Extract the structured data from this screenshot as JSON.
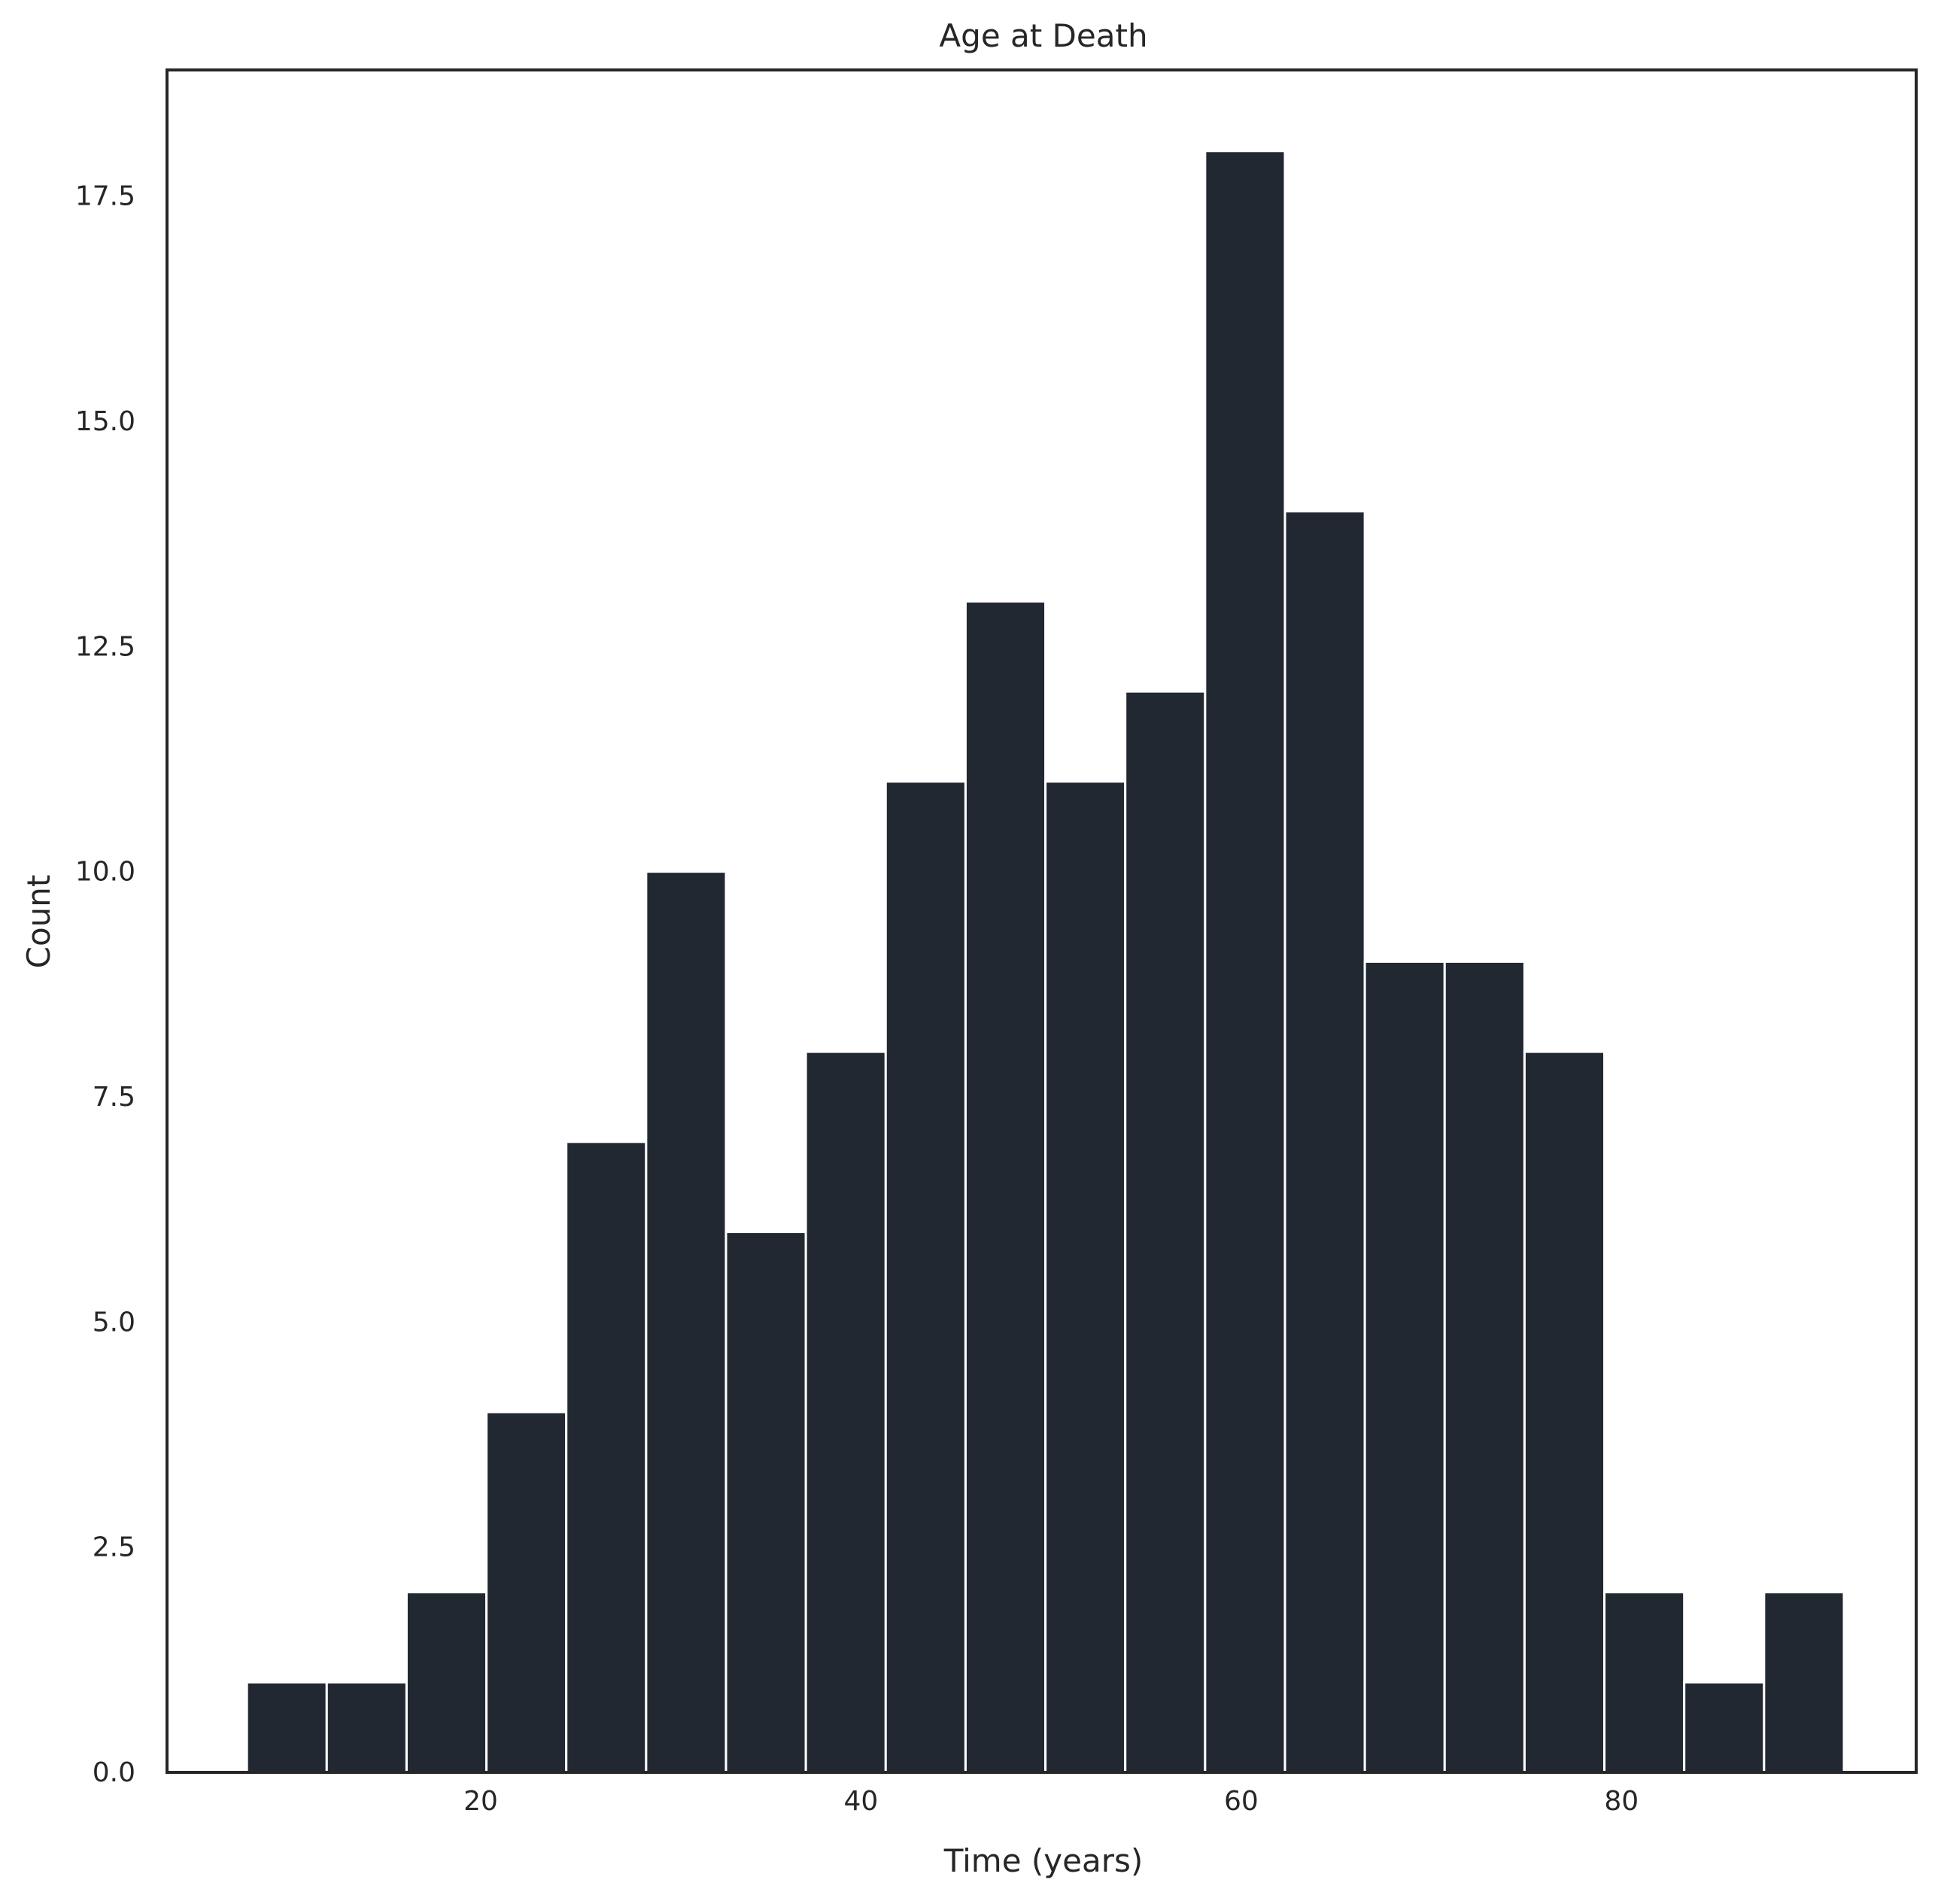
{
  "chart_data": {
    "type": "bar",
    "title": "Age at Death",
    "xlabel": "Time (years)",
    "ylabel": "Count",
    "bar_color": "#222831",
    "grid": false,
    "xlim": [
      3.5,
      95.5
    ],
    "ylim": [
      0,
      18.9
    ],
    "xticks": [
      20,
      40,
      60,
      80
    ],
    "xtick_labels": [
      "20",
      "40",
      "60",
      "80"
    ],
    "yticks": [
      0,
      2.5,
      5,
      7.5,
      10,
      12.5,
      15,
      17.5
    ],
    "ytick_labels": [
      "0.0",
      "2.5",
      "5.0",
      "7.5",
      "10.0",
      "12.5",
      "15.0",
      "17.5"
    ],
    "bins": [
      {
        "x0": 7.7,
        "x1": 11.9,
        "count": 1
      },
      {
        "x0": 11.9,
        "x1": 16.1,
        "count": 1
      },
      {
        "x0": 16.1,
        "x1": 20.3,
        "count": 2
      },
      {
        "x0": 20.3,
        "x1": 24.5,
        "count": 4
      },
      {
        "x0": 24.5,
        "x1": 28.7,
        "count": 7
      },
      {
        "x0": 28.7,
        "x1": 32.9,
        "count": 10
      },
      {
        "x0": 32.9,
        "x1": 37.1,
        "count": 6
      },
      {
        "x0": 37.1,
        "x1": 41.3,
        "count": 8
      },
      {
        "x0": 41.3,
        "x1": 45.5,
        "count": 11
      },
      {
        "x0": 45.5,
        "x1": 49.7,
        "count": 13
      },
      {
        "x0": 49.7,
        "x1": 53.9,
        "count": 11
      },
      {
        "x0": 53.9,
        "x1": 58.1,
        "count": 12
      },
      {
        "x0": 58.1,
        "x1": 62.3,
        "count": 18
      },
      {
        "x0": 62.3,
        "x1": 66.5,
        "count": 14
      },
      {
        "x0": 66.5,
        "x1": 70.7,
        "count": 9
      },
      {
        "x0": 70.7,
        "x1": 74.9,
        "count": 9
      },
      {
        "x0": 74.9,
        "x1": 79.1,
        "count": 8
      },
      {
        "x0": 79.1,
        "x1": 83.3,
        "count": 2
      },
      {
        "x0": 83.3,
        "x1": 87.5,
        "count": 1
      },
      {
        "x0": 87.5,
        "x1": 91.7,
        "count": 2
      }
    ]
  }
}
